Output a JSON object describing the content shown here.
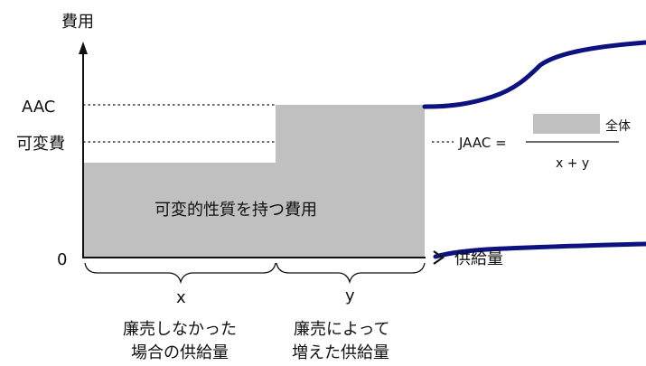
{
  "labels": {
    "y_axis": "費用",
    "x_axis": "供給量",
    "aac": "AAC",
    "variable_cost": "可変費",
    "zero": "0",
    "area_text": "可変的性質を持つ費用",
    "x_var": "x",
    "y_var": "y",
    "x_desc_line1": "廉売しなかった",
    "x_desc_line2": "場合の供給量",
    "y_desc_line1": "廉売によって",
    "y_desc_line2": "増えた供給量",
    "formula_lhs": "JAAC =",
    "formula_whole": "全体",
    "formula_denominator": "x + y"
  },
  "colors": {
    "area_fill": "#c0c0c0",
    "curve": "#0c1280",
    "axis": "#111111",
    "text": "#111111"
  }
}
